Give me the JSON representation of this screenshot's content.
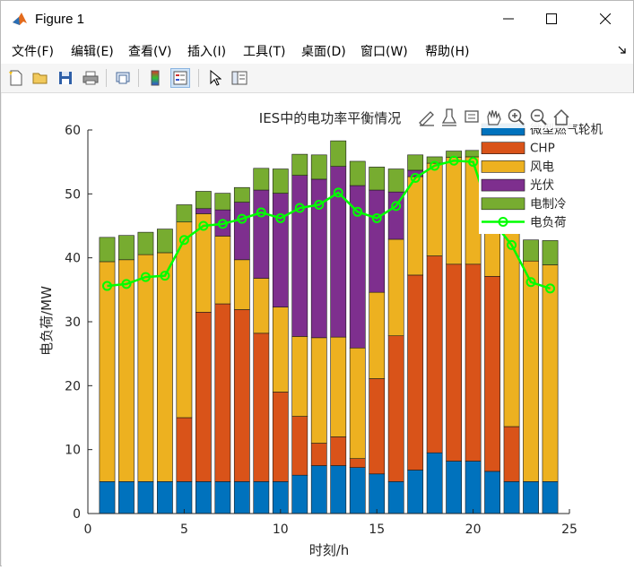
{
  "window": {
    "title": "Figure 1"
  },
  "menu": [
    {
      "id": "file",
      "label": "文件(F)"
    },
    {
      "id": "edit",
      "label": "编辑(E)"
    },
    {
      "id": "view",
      "label": "查看(V)"
    },
    {
      "id": "insert",
      "label": "插入(I)"
    },
    {
      "id": "tools",
      "label": "工具(T)"
    },
    {
      "id": "desktop",
      "label": "桌面(D)"
    },
    {
      "id": "window",
      "label": "窗口(W)"
    },
    {
      "id": "help",
      "label": "帮助(H)"
    }
  ],
  "colors": {
    "gas": "#0072BD",
    "chp": "#D95319",
    "wind": "#EDB120",
    "pv": "#7E2F8E",
    "cooling": "#77AC30",
    "load": "#00FF00"
  },
  "chart_data": {
    "type": "bar",
    "stacked": true,
    "title": "IES中的电功率平衡情况",
    "xlabel": "时刻/h",
    "ylabel": "电负荷/MW",
    "xlim": [
      0,
      25
    ],
    "ylim": [
      0,
      60
    ],
    "xticks": [
      0,
      5,
      10,
      15,
      20,
      25
    ],
    "yticks": [
      0,
      10,
      20,
      30,
      40,
      50,
      60
    ],
    "legend_position": "top-right",
    "categories": [
      1,
      2,
      3,
      4,
      5,
      6,
      7,
      8,
      9,
      10,
      11,
      12,
      13,
      14,
      15,
      16,
      17,
      18,
      19,
      20,
      21,
      22,
      23,
      24
    ],
    "series": [
      {
        "name": "微型燃气轮机",
        "key": "gas",
        "values": [
          5,
          5,
          5,
          5,
          5,
          5,
          5,
          5,
          5,
          5,
          6,
          7.5,
          7.5,
          7.2,
          6.2,
          5,
          6.8,
          9.5,
          8.2,
          8.2,
          6.6,
          5,
          5,
          5
        ]
      },
      {
        "name": "CHP",
        "key": "chp",
        "values": [
          0,
          0,
          0,
          0,
          10,
          26.5,
          27.8,
          26.9,
          23.2,
          14,
          9.2,
          3.5,
          4.5,
          1.4,
          14.9,
          22.8,
          30.5,
          30.8,
          30.8,
          30.8,
          30.5,
          8.6,
          0,
          0
        ]
      },
      {
        "name": "风电",
        "key": "wind",
        "values": [
          34.4,
          34.7,
          35.5,
          35.8,
          30.6,
          15.4,
          10.6,
          7.8,
          8.6,
          13.3,
          12.5,
          16.5,
          15.6,
          17.3,
          13.5,
          15.1,
          15.4,
          14.5,
          16.7,
          16.8,
          9,
          30.4,
          34.5,
          33.9
        ]
      },
      {
        "name": "光伏",
        "key": "pv",
        "values": [
          0,
          0,
          0,
          0,
          0,
          0.8,
          4.1,
          9,
          13.8,
          17.8,
          25.2,
          24.8,
          26.7,
          25.4,
          16,
          7.4,
          1,
          0,
          0,
          0,
          0,
          0,
          0,
          0
        ]
      },
      {
        "name": "电制冷",
        "key": "cooling",
        "values": [
          3.8,
          3.8,
          3.5,
          3.7,
          2.7,
          2.7,
          2.6,
          2.3,
          3.4,
          3.8,
          3.3,
          3.8,
          4,
          3.8,
          3.6,
          3.6,
          2.4,
          1,
          1,
          1,
          0.2,
          0.9,
          3.3,
          3.8
        ]
      }
    ],
    "load_series": {
      "name": "电负荷",
      "key": "load",
      "values": [
        35.6,
        35.9,
        37,
        37.2,
        42.8,
        45,
        45.3,
        46.1,
        47.1,
        46.2,
        47.8,
        48.3,
        50.2,
        47.2,
        46.2,
        48.1,
        52.5,
        54.4,
        55.2,
        55,
        45.8,
        42,
        36.2,
        35.2
      ]
    }
  }
}
